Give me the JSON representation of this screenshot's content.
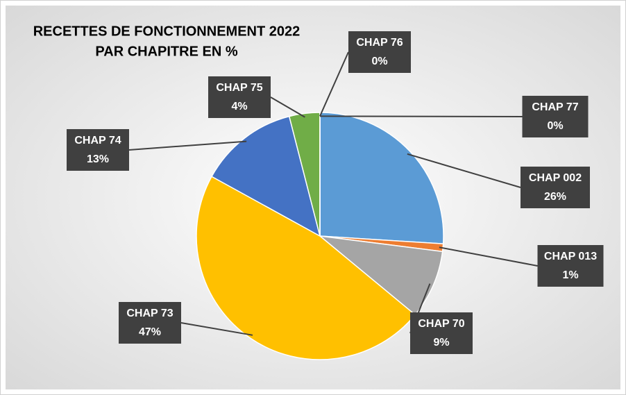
{
  "chart_data": {
    "type": "pie",
    "title": [
      "RECETTES DE FONCTIONNEMENT 2022",
      "PAR CHAPITRE EN %"
    ],
    "categories": [
      "CHAP 002",
      "CHAP 013",
      "CHAP 70",
      "CHAP 73",
      "CHAP 74",
      "CHAP 75",
      "CHAP 76",
      "CHAP 77"
    ],
    "values": [
      26,
      1,
      9,
      47,
      13,
      4,
      0,
      0
    ],
    "value_labels": [
      "26%",
      "1%",
      "9%",
      "47%",
      "13%",
      "4%",
      "0%",
      "0%"
    ],
    "colors": [
      "#5b9bd5",
      "#ed7d31",
      "#a5a5a5",
      "#ffc000",
      "#4472c4",
      "#70ad47",
      "#264478",
      "#9e480e"
    ]
  }
}
